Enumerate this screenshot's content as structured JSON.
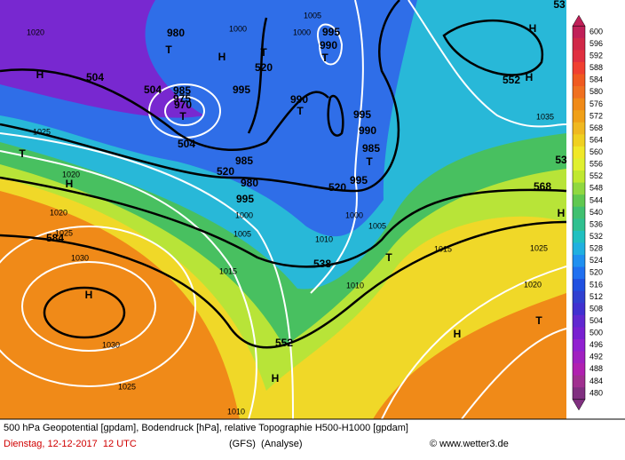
{
  "map": {
    "labels": [
      "1020",
      "H",
      "504",
      "980",
      "T",
      "1000",
      "T",
      "H",
      "520",
      "1005",
      "1000",
      "995",
      "990",
      "T",
      "504",
      "995",
      "990",
      "T",
      "985",
      "975",
      "970",
      "T",
      "504",
      "1025",
      "T",
      "520",
      "985",
      "995",
      "990",
      "985",
      "T",
      "1020",
      "H",
      "520",
      "995",
      "1000",
      "980",
      "995",
      "1000",
      "1005",
      "1020",
      "1025",
      "584",
      "1010",
      "1005",
      "1015",
      "T",
      "1030",
      "538",
      "1015",
      "1010",
      "H",
      "552",
      "1030",
      "H",
      "1020",
      "1025",
      "T",
      "1025",
      "H",
      "1010",
      "H",
      "552",
      "H",
      "1035",
      "568",
      "H",
      "53",
      "53"
    ]
  },
  "colorbar": [
    {
      "label": "600",
      "color": "#c02058"
    },
    {
      "label": "596",
      "color": "#d02848"
    },
    {
      "label": "592",
      "color": "#e03040"
    },
    {
      "label": "588",
      "color": "#f04030"
    },
    {
      "label": "584",
      "color": "#f05a20"
    },
    {
      "label": "580",
      "color": "#f07020"
    },
    {
      "label": "576",
      "color": "#f08a18"
    },
    {
      "label": "572",
      "color": "#f0a018"
    },
    {
      "label": "568",
      "color": "#f0b820"
    },
    {
      "label": "564",
      "color": "#f0d020"
    },
    {
      "label": "560",
      "color": "#f0e828"
    },
    {
      "label": "556",
      "color": "#e0f030"
    },
    {
      "label": "552",
      "color": "#c0e830"
    },
    {
      "label": "548",
      "color": "#90d840"
    },
    {
      "label": "544",
      "color": "#60c850"
    },
    {
      "label": "540",
      "color": "#40c070"
    },
    {
      "label": "536",
      "color": "#30c090"
    },
    {
      "label": "532",
      "color": "#20c0c0"
    },
    {
      "label": "528",
      "color": "#20b0e0"
    },
    {
      "label": "524",
      "color": "#2090f0"
    },
    {
      "label": "520",
      "color": "#2070f0"
    },
    {
      "label": "516",
      "color": "#2050e0"
    },
    {
      "label": "512",
      "color": "#3040d0"
    },
    {
      "label": "508",
      "color": "#4030d0"
    },
    {
      "label": "504",
      "color": "#6028d0"
    },
    {
      "label": "500",
      "color": "#7820d0"
    },
    {
      "label": "496",
      "color": "#9020d0"
    },
    {
      "label": "492",
      "color": "#a020c0"
    },
    {
      "label": "488",
      "color": "#b020b0"
    },
    {
      "label": "484",
      "color": "#a03090"
    },
    {
      "label": "480",
      "color": "#803080"
    }
  ],
  "footer": {
    "line1": "500 hPa Geopotential [gpdam], Bodendruck [hPa], relative Topographie H500-H1000 [gpdam]",
    "date": "Dienstag, 12-12-2017  12 UTC",
    "model": "(GFS)  (Analyse)",
    "credit": "© www.wetter3.de"
  }
}
